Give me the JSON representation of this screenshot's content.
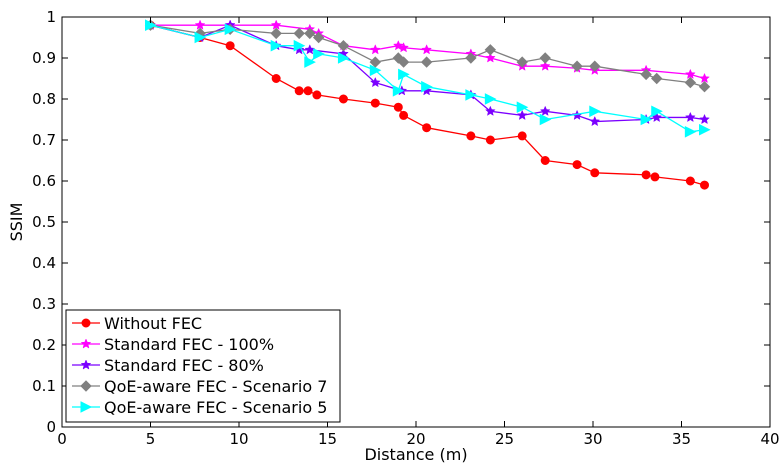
{
  "chart_data": {
    "type": "line",
    "xlabel": "Distance (m)",
    "ylabel": "SSIM",
    "xlim": [
      0,
      40
    ],
    "ylim": [
      0,
      1
    ],
    "xticks": [
      0,
      5,
      10,
      15,
      20,
      25,
      30,
      35,
      40
    ],
    "yticks": [
      0,
      0.1,
      0.2,
      0.3,
      0.4,
      0.5,
      0.6,
      0.7,
      0.8,
      0.9,
      1
    ],
    "xtick_labels": [
      "0",
      "5",
      "10",
      "15",
      "20",
      "25",
      "30",
      "35",
      "40"
    ],
    "ytick_labels": [
      "0",
      "0.1",
      "0.2",
      "0.3",
      "0.4",
      "0.5",
      "0.6",
      "0.7",
      "0.8",
      "0.9",
      "1"
    ],
    "grid": false,
    "legend_position": "bottom-left",
    "series": [
      {
        "name": "Without FEC",
        "color": "#ff0000",
        "marker": "circle",
        "x": [
          5,
          7.8,
          9.5,
          12.1,
          13.4,
          13.9,
          14.4,
          15.9,
          17.7,
          19.0,
          19.3,
          20.6,
          23.1,
          24.2,
          26.0,
          27.3,
          29.1,
          30.1,
          33.0,
          33.5,
          35.5,
          36.3
        ],
        "y": [
          0.98,
          0.95,
          0.93,
          0.85,
          0.82,
          0.82,
          0.81,
          0.8,
          0.79,
          0.78,
          0.76,
          0.73,
          0.71,
          0.7,
          0.71,
          0.65,
          0.64,
          0.62,
          0.615,
          0.61,
          0.6,
          0.59
        ]
      },
      {
        "name": "Standard FEC - 100%",
        "color": "#ff00ff",
        "marker": "star",
        "x": [
          5,
          7.8,
          9.5,
          12.1,
          14.0,
          14.5,
          15.9,
          17.7,
          19.0,
          19.3,
          20.6,
          23.1,
          24.2,
          26.0,
          27.3,
          29.1,
          30.1,
          33.0,
          35.5,
          36.3
        ],
        "y": [
          0.98,
          0.98,
          0.98,
          0.98,
          0.97,
          0.96,
          0.93,
          0.92,
          0.93,
          0.925,
          0.92,
          0.91,
          0.9,
          0.88,
          0.88,
          0.875,
          0.87,
          0.87,
          0.86,
          0.85
        ]
      },
      {
        "name": "Standard FEC - 80%",
        "color": "#7b00ff",
        "marker": "star",
        "x": [
          5,
          7.8,
          9.5,
          12.1,
          13.4,
          14.0,
          15.9,
          17.7,
          19.2,
          20.6,
          23.1,
          24.2,
          26.0,
          27.3,
          29.1,
          30.1,
          33.0,
          33.6,
          35.5,
          36.3
        ],
        "y": [
          0.98,
          0.95,
          0.98,
          0.93,
          0.92,
          0.92,
          0.91,
          0.84,
          0.82,
          0.82,
          0.81,
          0.77,
          0.76,
          0.77,
          0.76,
          0.745,
          0.75,
          0.755,
          0.755,
          0.75
        ]
      },
      {
        "name": "QoE-aware FEC - Scenario 7",
        "color": "#808080",
        "marker": "diamond",
        "x": [
          5,
          7.8,
          9.5,
          12.1,
          13.4,
          14.0,
          14.5,
          15.9,
          17.7,
          19.0,
          19.3,
          20.6,
          23.1,
          24.2,
          26.0,
          27.3,
          29.1,
          30.1,
          33.0,
          33.6,
          35.5,
          36.3
        ],
        "y": [
          0.98,
          0.96,
          0.97,
          0.96,
          0.96,
          0.96,
          0.95,
          0.93,
          0.89,
          0.9,
          0.89,
          0.89,
          0.9,
          0.92,
          0.89,
          0.9,
          0.88,
          0.88,
          0.86,
          0.85,
          0.84,
          0.83
        ]
      },
      {
        "name": "QoE-aware FEC - Scenario 5",
        "color": "#00ffff",
        "marker": "triangle-right",
        "x": [
          5,
          7.8,
          9.5,
          12.1,
          13.4,
          14.0,
          14.5,
          15.9,
          17.7,
          19.0,
          19.3,
          20.6,
          23.1,
          24.2,
          26.0,
          27.3,
          30.1,
          33.0,
          33.6,
          35.5,
          36.3
        ],
        "y": [
          0.98,
          0.95,
          0.97,
          0.93,
          0.93,
          0.89,
          0.91,
          0.9,
          0.87,
          0.82,
          0.86,
          0.83,
          0.81,
          0.8,
          0.78,
          0.75,
          0.77,
          0.75,
          0.77,
          0.72,
          0.725
        ]
      }
    ]
  }
}
